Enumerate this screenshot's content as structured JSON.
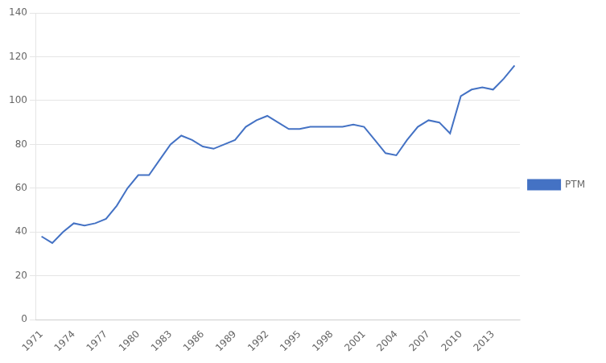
{
  "chart_data": {
    "type": "line",
    "x": [
      1971,
      1972,
      1973,
      1974,
      1975,
      1976,
      1977,
      1978,
      1979,
      1980,
      1981,
      1982,
      1983,
      1984,
      1985,
      1986,
      1987,
      1988,
      1989,
      1990,
      1991,
      1992,
      1993,
      1994,
      1995,
      1996,
      1997,
      1998,
      1999,
      2000,
      2001,
      2002,
      2003,
      2004,
      2005,
      2006,
      2007,
      2008,
      2009,
      2010,
      2011,
      2012,
      2013,
      2014,
      2015
    ],
    "series": [
      {
        "name": "PTM",
        "color": "#4472C4",
        "values": [
          38,
          35,
          40,
          44,
          43,
          44,
          46,
          52,
          60,
          66,
          66,
          73,
          80,
          84,
          82,
          79,
          78,
          80,
          82,
          88,
          91,
          93,
          90,
          87,
          87,
          88,
          88,
          88,
          88,
          89,
          88,
          82,
          76,
          75,
          82,
          88,
          91,
          90,
          85,
          102,
          105,
          106,
          105,
          110,
          116
        ]
      }
    ],
    "xlim": [
      1970.5,
      2015.5
    ],
    "xticks": [
      1971,
      1974,
      1977,
      1980,
      1983,
      1986,
      1989,
      1992,
      1995,
      1998,
      2001,
      2004,
      2007,
      2010,
      2013
    ],
    "ylim": [
      0,
      140
    ],
    "yticks": [
      0,
      20,
      40,
      60,
      80,
      100,
      120,
      140
    ],
    "grid": "y",
    "legend": "right"
  }
}
